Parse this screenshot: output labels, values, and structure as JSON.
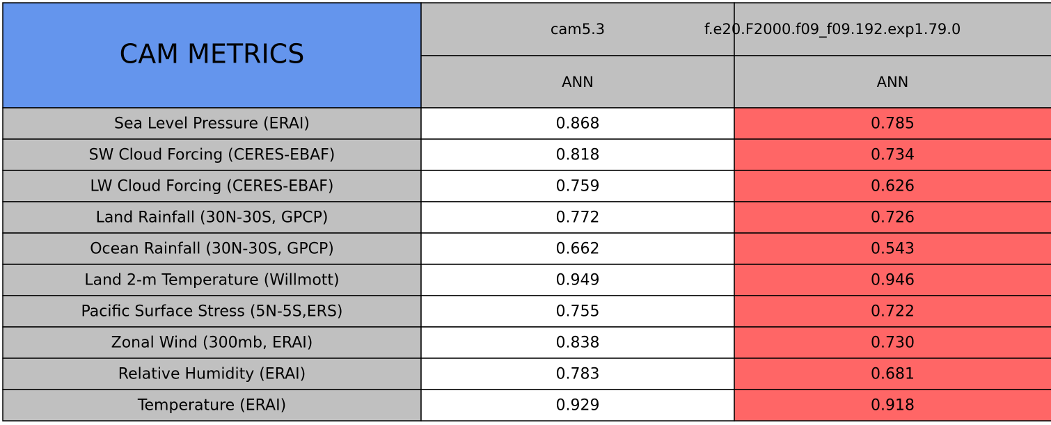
{
  "header": {
    "title": "CAM METRICS",
    "columns": [
      {
        "name": "cam5.3",
        "season": "ANN"
      },
      {
        "name": "f.e20.F2000.f09_f09.192.exp1.79.0",
        "season": "ANN"
      }
    ]
  },
  "table": {
    "rows": [
      [
        "Sea Level Pressure (ERAI)",
        "0.868",
        "0.785"
      ],
      [
        "SW Cloud Forcing (CERES-EBAF)",
        "0.818",
        "0.734"
      ],
      [
        "LW Cloud Forcing (CERES-EBAF)",
        "0.759",
        "0.626"
      ],
      [
        "Land Rainfall (30N-30S, GPCP)",
        "0.772",
        "0.726"
      ],
      [
        "Ocean Rainfall (30N-30S, GPCP)",
        "0.662",
        "0.543"
      ],
      [
        "Land 2-m Temperature (Willmott)",
        "0.949",
        "0.946"
      ],
      [
        "Pacific Surface Stress (5N-5S,ERS)",
        "0.755",
        "0.722"
      ],
      [
        "Zonal Wind (300mb, ERAI)",
        "0.838",
        "0.730"
      ],
      [
        "Relative Humidity (ERAI)",
        "0.783",
        "0.681"
      ],
      [
        "Temperature (ERAI)",
        "0.929",
        "0.918"
      ]
    ]
  }
}
